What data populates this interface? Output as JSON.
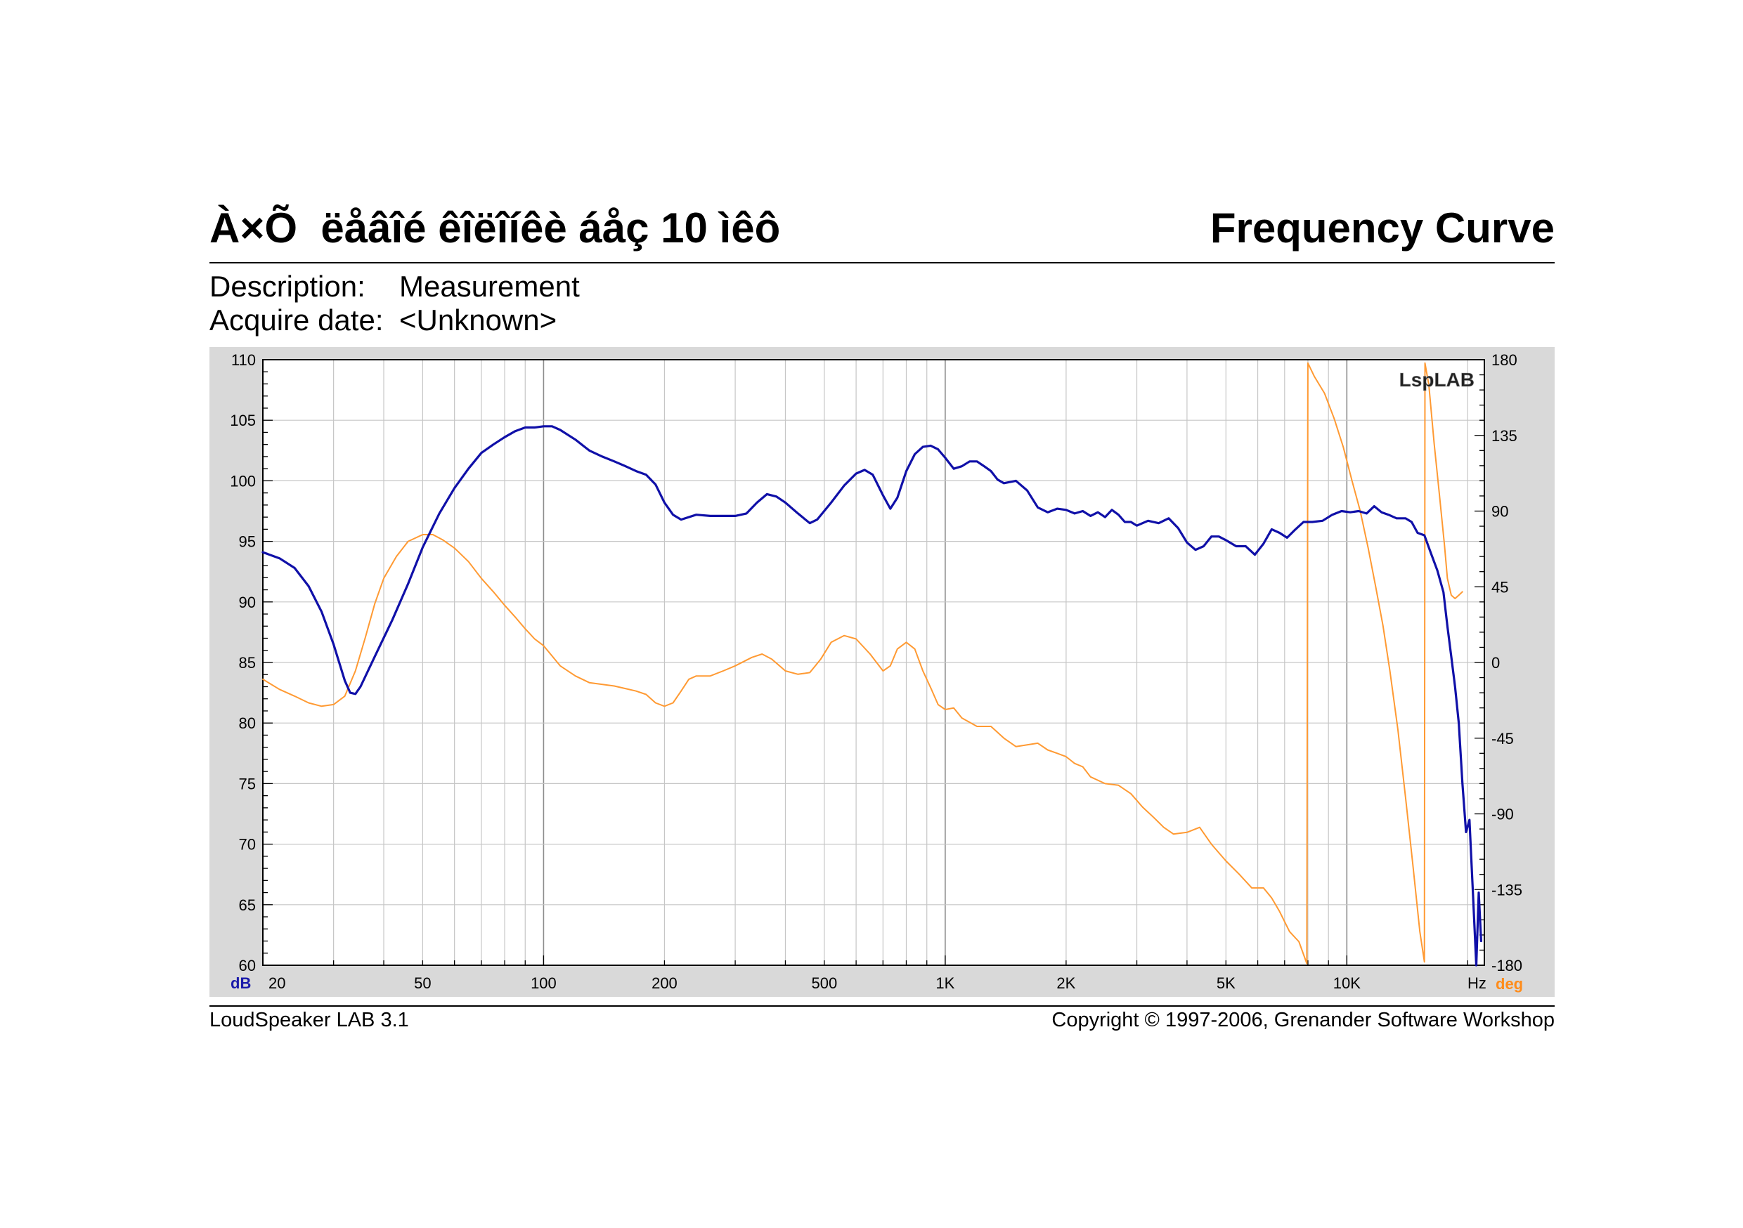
{
  "header": {
    "title_left": "À×Õ  ëåâîé êîëîíêè áåç 10 ìêô",
    "title_right": "Frequency Curve",
    "description_label": "Description:",
    "description_value": "Measurement",
    "date_label": "Acquire date:",
    "date_value": "<Unknown>"
  },
  "footer": {
    "left": "LoudSpeaker LAB 3.1",
    "right": "Copyright © 1997-2006, Grenander Software Workshop"
  },
  "chart_data": {
    "type": "line",
    "watermark": "LspLAB",
    "x_scale": "log",
    "xlim": [
      20,
      22000
    ],
    "x_ticks": [
      {
        "v": 20,
        "label": "20"
      },
      {
        "v": 50,
        "label": "50"
      },
      {
        "v": 100,
        "label": "100"
      },
      {
        "v": 200,
        "label": "200"
      },
      {
        "v": 500,
        "label": "500"
      },
      {
        "v": 1000,
        "label": "1K"
      },
      {
        "v": 2000,
        "label": "2K"
      },
      {
        "v": 5000,
        "label": "5K"
      },
      {
        "v": 10000,
        "label": "10K"
      }
    ],
    "x_unit": "Hz",
    "y_left": {
      "unit": "dB",
      "lim": [
        60,
        110
      ],
      "ticks": [
        60,
        65,
        70,
        75,
        80,
        85,
        90,
        95,
        100,
        105,
        110
      ],
      "color": "#1a1aaa"
    },
    "y_right": {
      "unit": "deg",
      "lim": [
        -180,
        180
      ],
      "ticks": [
        -180,
        -135,
        -90,
        -45,
        0,
        45,
        90,
        135,
        180
      ],
      "color": "#ff8c1a"
    },
    "grid": true,
    "series": [
      {
        "axis": "left",
        "color": "#1010a8",
        "points": [
          [
            20,
            94.1
          ],
          [
            22,
            93.6
          ],
          [
            24,
            92.8
          ],
          [
            26,
            91.3
          ],
          [
            28,
            89.2
          ],
          [
            30,
            86.5
          ],
          [
            32,
            83.5
          ],
          [
            33,
            82.5
          ],
          [
            34,
            82.4
          ],
          [
            35,
            83.0
          ],
          [
            38,
            85.5
          ],
          [
            42,
            88.5
          ],
          [
            46,
            91.5
          ],
          [
            50,
            94.5
          ],
          [
            55,
            97.3
          ],
          [
            60,
            99.4
          ],
          [
            65,
            101.0
          ],
          [
            70,
            102.3
          ],
          [
            75,
            103.0
          ],
          [
            80,
            103.6
          ],
          [
            85,
            104.1
          ],
          [
            90,
            104.4
          ],
          [
            95,
            104.4
          ],
          [
            100,
            104.5
          ],
          [
            105,
            104.5
          ],
          [
            110,
            104.2
          ],
          [
            120,
            103.4
          ],
          [
            130,
            102.5
          ],
          [
            140,
            102.0
          ],
          [
            150,
            101.6
          ],
          [
            160,
            101.2
          ],
          [
            170,
            100.8
          ],
          [
            180,
            100.5
          ],
          [
            190,
            99.7
          ],
          [
            200,
            98.2
          ],
          [
            210,
            97.2
          ],
          [
            220,
            96.8
          ],
          [
            240,
            97.2
          ],
          [
            260,
            97.1
          ],
          [
            280,
            97.1
          ],
          [
            300,
            97.1
          ],
          [
            320,
            97.3
          ],
          [
            340,
            98.2
          ],
          [
            360,
            98.9
          ],
          [
            380,
            98.7
          ],
          [
            400,
            98.2
          ],
          [
            430,
            97.3
          ],
          [
            460,
            96.5
          ],
          [
            480,
            96.8
          ],
          [
            520,
            98.2
          ],
          [
            560,
            99.6
          ],
          [
            600,
            100.6
          ],
          [
            630,
            100.9
          ],
          [
            660,
            100.5
          ],
          [
            700,
            98.8
          ],
          [
            730,
            97.7
          ],
          [
            760,
            98.6
          ],
          [
            800,
            100.8
          ],
          [
            840,
            102.2
          ],
          [
            880,
            102.8
          ],
          [
            920,
            102.9
          ],
          [
            960,
            102.6
          ],
          [
            1000,
            101.9
          ],
          [
            1050,
            101.0
          ],
          [
            1100,
            101.2
          ],
          [
            1150,
            101.6
          ],
          [
            1200,
            101.6
          ],
          [
            1250,
            101.2
          ],
          [
            1300,
            100.8
          ],
          [
            1350,
            100.1
          ],
          [
            1400,
            99.8
          ],
          [
            1500,
            100.0
          ],
          [
            1600,
            99.2
          ],
          [
            1700,
            97.8
          ],
          [
            1800,
            97.4
          ],
          [
            1900,
            97.7
          ],
          [
            2000,
            97.6
          ],
          [
            2100,
            97.3
          ],
          [
            2200,
            97.5
          ],
          [
            2300,
            97.1
          ],
          [
            2400,
            97.4
          ],
          [
            2500,
            97.0
          ],
          [
            2600,
            97.6
          ],
          [
            2700,
            97.2
          ],
          [
            2800,
            96.6
          ],
          [
            2900,
            96.6
          ],
          [
            3000,
            96.3
          ],
          [
            3200,
            96.7
          ],
          [
            3400,
            96.5
          ],
          [
            3600,
            96.9
          ],
          [
            3800,
            96.1
          ],
          [
            4000,
            94.9
          ],
          [
            4200,
            94.3
          ],
          [
            4400,
            94.6
          ],
          [
            4600,
            95.4
          ],
          [
            4800,
            95.4
          ],
          [
            5000,
            95.1
          ],
          [
            5300,
            94.6
          ],
          [
            5600,
            94.6
          ],
          [
            5900,
            93.9
          ],
          [
            6200,
            94.8
          ],
          [
            6500,
            96.0
          ],
          [
            6800,
            95.7
          ],
          [
            7100,
            95.3
          ],
          [
            7400,
            95.9
          ],
          [
            7800,
            96.6
          ],
          [
            8200,
            96.6
          ],
          [
            8700,
            96.7
          ],
          [
            9200,
            97.2
          ],
          [
            9700,
            97.5
          ],
          [
            10200,
            97.4
          ],
          [
            10700,
            97.5
          ],
          [
            11200,
            97.3
          ],
          [
            11700,
            97.9
          ],
          [
            12200,
            97.4
          ],
          [
            12700,
            97.2
          ],
          [
            13300,
            96.9
          ],
          [
            14000,
            96.9
          ],
          [
            14500,
            96.6
          ],
          [
            15000,
            95.7
          ],
          [
            15600,
            95.5
          ],
          [
            16200,
            94.0
          ],
          [
            16800,
            92.6
          ],
          [
            17400,
            90.8
          ],
          [
            17800,
            88.0
          ],
          [
            18200,
            85.5
          ],
          [
            18600,
            83.0
          ],
          [
            19000,
            80.0
          ],
          [
            19400,
            75.0
          ],
          [
            19800,
            71.0
          ],
          [
            20200,
            72.0
          ],
          [
            20600,
            66.0
          ],
          [
            21000,
            60.0
          ],
          [
            21300,
            66.0
          ],
          [
            21600,
            62.0
          ]
        ]
      },
      {
        "axis": "right",
        "color": "#ff9a33",
        "points": [
          [
            20,
            -10
          ],
          [
            22,
            -16
          ],
          [
            24,
            -20
          ],
          [
            26,
            -24
          ],
          [
            28,
            -26
          ],
          [
            30,
            -25
          ],
          [
            32,
            -20
          ],
          [
            34,
            -5
          ],
          [
            36,
            15
          ],
          [
            38,
            35
          ],
          [
            40,
            50
          ],
          [
            43,
            63
          ],
          [
            46,
            72
          ],
          [
            50,
            76
          ],
          [
            53,
            76
          ],
          [
            56,
            73
          ],
          [
            60,
            68
          ],
          [
            65,
            60
          ],
          [
            70,
            50
          ],
          [
            75,
            42
          ],
          [
            80,
            34
          ],
          [
            85,
            27
          ],
          [
            90,
            20
          ],
          [
            95,
            14
          ],
          [
            100,
            10
          ],
          [
            110,
            -2
          ],
          [
            120,
            -8
          ],
          [
            130,
            -12
          ],
          [
            150,
            -14
          ],
          [
            170,
            -17
          ],
          [
            180,
            -19
          ],
          [
            190,
            -24
          ],
          [
            200,
            -26
          ],
          [
            210,
            -24
          ],
          [
            220,
            -17
          ],
          [
            230,
            -10
          ],
          [
            240,
            -8
          ],
          [
            260,
            -8
          ],
          [
            280,
            -5
          ],
          [
            300,
            -2
          ],
          [
            330,
            3
          ],
          [
            350,
            5
          ],
          [
            370,
            2
          ],
          [
            400,
            -5
          ],
          [
            430,
            -7
          ],
          [
            460,
            -6
          ],
          [
            490,
            2
          ],
          [
            520,
            12
          ],
          [
            560,
            16
          ],
          [
            600,
            14
          ],
          [
            650,
            5
          ],
          [
            700,
            -5
          ],
          [
            730,
            -2
          ],
          [
            760,
            8
          ],
          [
            800,
            12
          ],
          [
            840,
            8
          ],
          [
            880,
            -5
          ],
          [
            920,
            -15
          ],
          [
            960,
            -25
          ],
          [
            1000,
            -28
          ],
          [
            1050,
            -27
          ],
          [
            1100,
            -33
          ],
          [
            1200,
            -38
          ],
          [
            1300,
            -38
          ],
          [
            1400,
            -45
          ],
          [
            1500,
            -50
          ],
          [
            1600,
            -49
          ],
          [
            1700,
            -48
          ],
          [
            1800,
            -52
          ],
          [
            1900,
            -54
          ],
          [
            2000,
            -56
          ],
          [
            2100,
            -60
          ],
          [
            2200,
            -62
          ],
          [
            2300,
            -68
          ],
          [
            2500,
            -72
          ],
          [
            2700,
            -73
          ],
          [
            2900,
            -78
          ],
          [
            3100,
            -86
          ],
          [
            3300,
            -92
          ],
          [
            3500,
            -98
          ],
          [
            3700,
            -102
          ],
          [
            4000,
            -101
          ],
          [
            4300,
            -98
          ],
          [
            4600,
            -108
          ],
          [
            5000,
            -118
          ],
          [
            5400,
            -126
          ],
          [
            5800,
            -134
          ],
          [
            6200,
            -134
          ],
          [
            6500,
            -140
          ],
          [
            6800,
            -148
          ],
          [
            7200,
            -160
          ],
          [
            7600,
            -166
          ],
          [
            7950,
            -179
          ],
          [
            8000,
            178
          ],
          [
            8300,
            170
          ],
          [
            8800,
            160
          ],
          [
            9300,
            145
          ],
          [
            9800,
            128
          ],
          [
            10300,
            108
          ],
          [
            10800,
            90
          ],
          [
            11300,
            68
          ],
          [
            11800,
            45
          ],
          [
            12300,
            22
          ],
          [
            12800,
            -5
          ],
          [
            13400,
            -40
          ],
          [
            14000,
            -80
          ],
          [
            14600,
            -120
          ],
          [
            15200,
            -160
          ],
          [
            15600,
            -178
          ],
          [
            15650,
            178
          ],
          [
            16000,
            165
          ],
          [
            16500,
            130
          ],
          [
            17000,
            100
          ],
          [
            17500,
            70
          ],
          [
            17800,
            50
          ],
          [
            18200,
            40
          ],
          [
            18600,
            38
          ],
          [
            19000,
            40
          ],
          [
            19400,
            42
          ]
        ]
      }
    ]
  }
}
